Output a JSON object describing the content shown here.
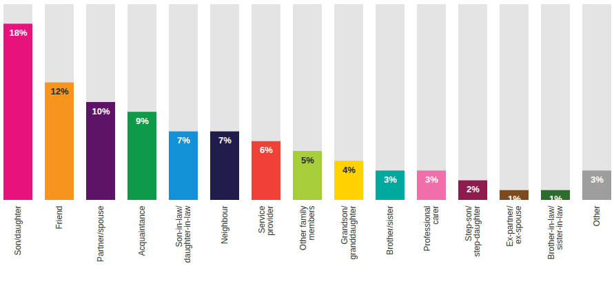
{
  "chart_data": {
    "type": "bar",
    "categories": [
      "Son/daughter",
      "Friend",
      "Partner/spouse",
      "Acquaintance",
      "Son-in-law/\ndaughter-in-law",
      "Neighbour",
      "Service\nprovider",
      "Other family\nmembers",
      "Grandson/\ngranddaughter",
      "Brother/sister",
      "Professional\ncarer",
      "Step-son/\nstep-daughter",
      "Ex-partner/\nex-spouse",
      "Brother-in-law/\nsister-in-law",
      "Other"
    ],
    "values": [
      18,
      12,
      10,
      9,
      7,
      7,
      6,
      5,
      4,
      3,
      3,
      2,
      1,
      1,
      3
    ],
    "value_labels": [
      "18%",
      "12%",
      "10%",
      "9%",
      "7%",
      "7%",
      "6%",
      "5%",
      "4%",
      "3%",
      "3%",
      "2%",
      "1%",
      "1%",
      "3%"
    ],
    "colors": [
      "#e8127c",
      "#f7941d",
      "#5e1466",
      "#0e9a48",
      "#1391d6",
      "#1f1b4a",
      "#ef4136",
      "#a6ce39",
      "#ffd200",
      "#00a99d",
      "#f06eaa",
      "#8e1b4e",
      "#7b4a1e",
      "#2e6b2e",
      "#9e9e9e"
    ],
    "ylim": [
      0,
      20
    ],
    "data_labels": true,
    "tick_labels": "x"
  }
}
